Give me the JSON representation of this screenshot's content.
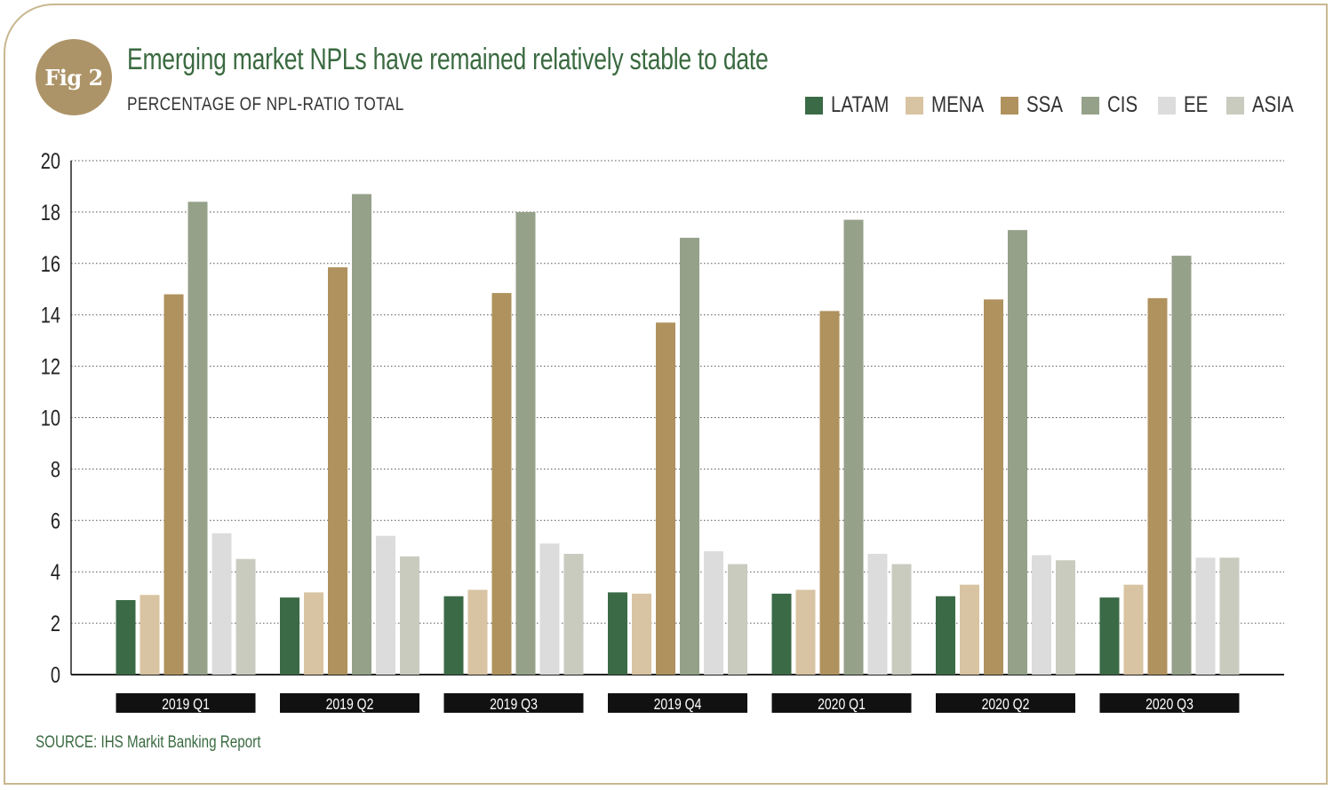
{
  "badge": {
    "label": "Fig 2"
  },
  "title": "Emerging market NPLs have remained relatively stable to date",
  "subtitle": "PERCENTAGE OF NPL-RATIO TOTAL",
  "source": "SOURCE: IHS Markit Banking Report",
  "colors": {
    "accent": "#3a6a40",
    "gold": "#ad9468",
    "frame": "#c9b88f"
  },
  "chart_data": {
    "type": "bar",
    "title": "Emerging market NPLs have remained relatively stable to date",
    "subtitle": "PERCENTAGE OF NPL-RATIO TOTAL",
    "xlabel": "",
    "ylabel": "",
    "ylim": [
      0,
      20
    ],
    "yticks": [
      0,
      2,
      4,
      6,
      8,
      10,
      12,
      14,
      16,
      18,
      20
    ],
    "grid": true,
    "legend_position": "top-right",
    "categories": [
      "2019 Q1",
      "2019 Q2",
      "2019 Q3",
      "2019 Q4",
      "2020 Q1",
      "2020 Q2",
      "2020 Q3"
    ],
    "series": [
      {
        "name": "LATAM",
        "color": "#3b6a46",
        "values": [
          2.9,
          3.0,
          3.05,
          3.2,
          3.15,
          3.05,
          3.0
        ]
      },
      {
        "name": "MENA",
        "color": "#d8c4a2",
        "values": [
          3.1,
          3.2,
          3.3,
          3.15,
          3.3,
          3.5,
          3.5
        ]
      },
      {
        "name": "SSA",
        "color": "#b0925e",
        "values": [
          14.8,
          15.85,
          14.85,
          13.7,
          14.15,
          14.6,
          14.65
        ]
      },
      {
        "name": "CIS",
        "color": "#95a189",
        "values": [
          18.4,
          18.7,
          18.0,
          17.0,
          17.7,
          17.3,
          16.3
        ]
      },
      {
        "name": "EE",
        "color": "#dcdcdc",
        "values": [
          5.5,
          5.4,
          5.1,
          4.8,
          4.7,
          4.65,
          4.55
        ]
      },
      {
        "name": "ASIA",
        "color": "#c9cbbf",
        "values": [
          4.5,
          4.6,
          4.7,
          4.3,
          4.3,
          4.45,
          4.55
        ]
      }
    ]
  }
}
